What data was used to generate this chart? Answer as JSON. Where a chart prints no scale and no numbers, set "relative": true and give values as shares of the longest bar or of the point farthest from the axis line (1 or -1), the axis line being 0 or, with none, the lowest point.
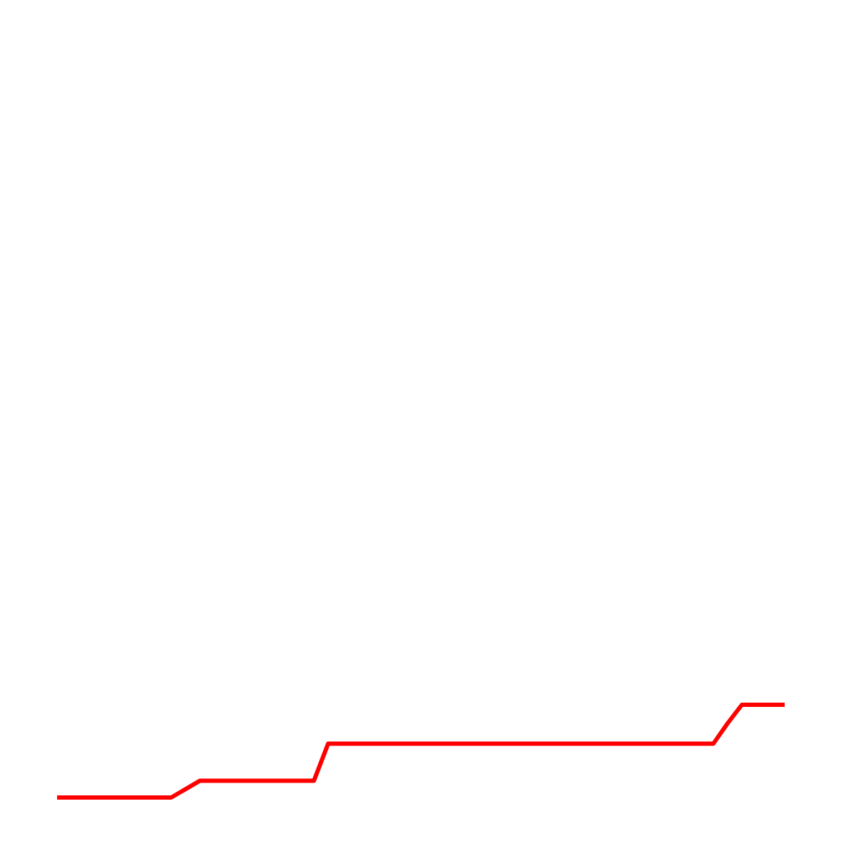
{
  "chart_data": {
    "type": "line",
    "relative": true,
    "categories": [
      null,
      null,
      null,
      null,
      null,
      null,
      null,
      null,
      null,
      null,
      null,
      null,
      null,
      null,
      null,
      null,
      null,
      null,
      null,
      null,
      null,
      null,
      null,
      null,
      null,
      null,
      null,
      null,
      null,
      null,
      null,
      null,
      null,
      null,
      null,
      null,
      null,
      null,
      null,
      null,
      null,
      null,
      null,
      null,
      null,
      null,
      null,
      null,
      null,
      null,
      null,
      null
    ],
    "series": [
      {
        "color": "#ff0000",
        "values": [
          0,
          0,
          0,
          0,
          0,
          0,
          0,
          0,
          0,
          0.09,
          0.18,
          0.18,
          0.18,
          0.18,
          0.18,
          0.18,
          0.18,
          0.18,
          0.18,
          0.58,
          0.58,
          0.58,
          0.58,
          0.58,
          0.58,
          0.58,
          0.58,
          0.58,
          0.58,
          0.58,
          0.58,
          0.58,
          0.58,
          0.58,
          0.58,
          0.58,
          0.58,
          0.58,
          0.58,
          0.58,
          0.58,
          0.58,
          0.58,
          0.58,
          0.58,
          0.58,
          0.58,
          0.8,
          1,
          1,
          1,
          1
        ]
      }
    ],
    "legend": false,
    "grid": false,
    "marker": "none",
    "line_style": "solid"
  }
}
